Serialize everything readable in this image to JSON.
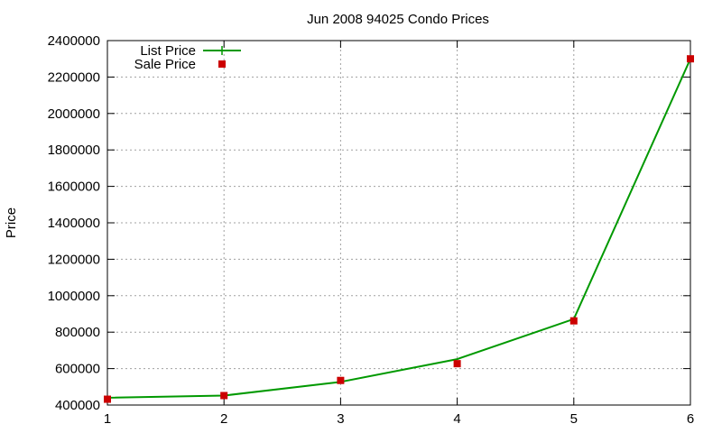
{
  "chart_data": {
    "type": "line",
    "title": "Jun 2008 94025 Condo Prices",
    "xlabel": "",
    "ylabel": "Price",
    "xlim": [
      1,
      6
    ],
    "ylim": [
      400000,
      2400000
    ],
    "x_ticks": [
      1,
      2,
      3,
      4,
      5,
      6
    ],
    "y_ticks": [
      400000,
      600000,
      800000,
      1000000,
      1200000,
      1400000,
      1600000,
      1800000,
      2000000,
      2200000,
      2400000
    ],
    "grid": true,
    "legend_position": "top-left",
    "series": [
      {
        "name": "List Price",
        "style": "line",
        "color": "#009900",
        "x": [
          1,
          2,
          3,
          4,
          5,
          6
        ],
        "values": [
          440000,
          452000,
          527000,
          652000,
          872000,
          2300000
        ]
      },
      {
        "name": "Sale Price",
        "style": "points",
        "color": "#cc0000",
        "x": [
          1,
          2,
          3,
          4,
          5,
          6
        ],
        "values": [
          432000,
          452000,
          535000,
          627000,
          862000,
          2300000
        ]
      }
    ]
  }
}
